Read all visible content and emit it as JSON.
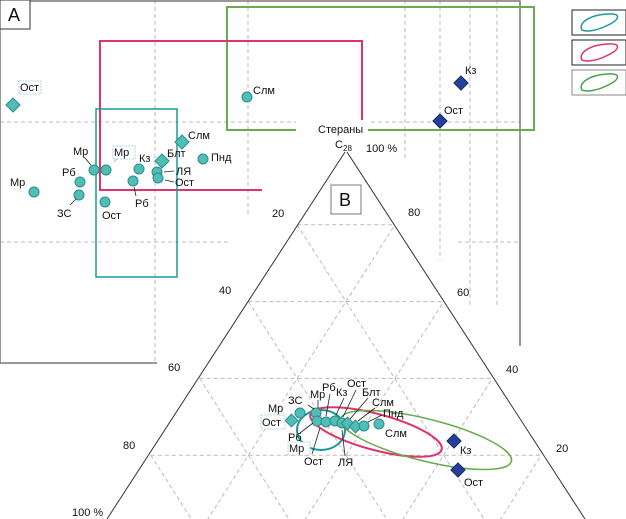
{
  "panels": {
    "a_label": "A",
    "b_label": "B"
  },
  "ternary": {
    "apex_label": "Стераны",
    "apex_sub_main": "C",
    "apex_sub_index": "28",
    "apex_pct": "100 %",
    "left_ticks": [
      "20",
      "40",
      "60",
      "80",
      "100 %"
    ],
    "right_ticks": [
      "80",
      "60",
      "40",
      "20"
    ]
  },
  "legend": {
    "colors": [
      "#1a9a9a",
      "#e0336e",
      "#4aa04a"
    ]
  },
  "colors": {
    "teal": "#1a9a9a",
    "pink": "#e0336e",
    "green": "#6aaa50",
    "circle": "#4fbdb8",
    "diamond_blue": "#24409a"
  },
  "panel_a_points": [
    "Ост",
    "Мр",
    "Рб",
    "ЗС",
    "Мр",
    "Мр",
    "Ост",
    "Кз",
    "Рб",
    "Блт",
    "ЛЯ",
    "Ост",
    "Слм",
    "Пнд",
    "Слм",
    "Кз",
    "Ост"
  ],
  "panel_b_points": [
    "Мр",
    "Ост",
    "ЗС",
    "Мр",
    "Рб",
    "Кз",
    "Ост",
    "Блт",
    "Слм",
    "Пнд",
    "Слм",
    "Рб",
    "Мр",
    "Ост",
    "ЛЯ",
    "Кз",
    "Ост"
  ]
}
